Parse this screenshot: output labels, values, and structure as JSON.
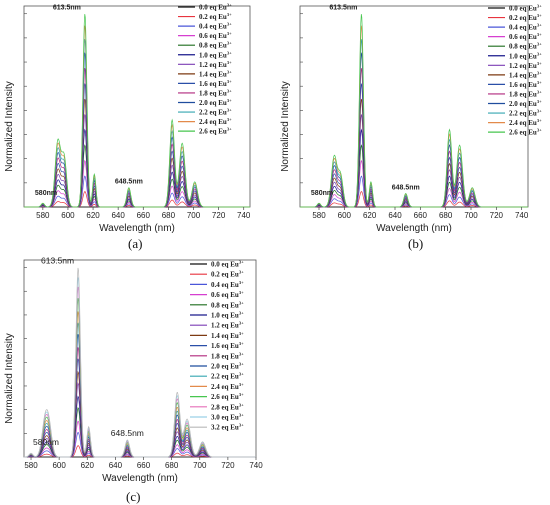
{
  "chart_data": [
    {
      "type": "line",
      "panel_label": "(a)",
      "xlabel": "Wavelength (nm)",
      "ylabel": "Normalized Intensity",
      "xlim": [
        565,
        745
      ],
      "x_ticks": [
        580,
        600,
        620,
        640,
        660,
        680,
        700,
        720,
        740
      ],
      "grid": false,
      "legend_position": "top-right",
      "peak_annotations": [
        {
          "text": "613.5nm",
          "x": 613.5
        },
        {
          "text": "648.5nm",
          "x": 648.5
        },
        {
          "text": "580nm",
          "x": 580
        }
      ],
      "peaks_nm": [
        580,
        592,
        597,
        613.5,
        621,
        648.5,
        683,
        691,
        701
      ],
      "peak_intensity_at_max_eu": [
        0.02,
        0.34,
        0.25,
        1.0,
        0.17,
        0.1,
        0.45,
        0.33,
        0.13
      ],
      "series": [
        {
          "name": "0.0 eq Eu",
          "scale": 0.0,
          "color": "#111111"
        },
        {
          "name": "0.2 eq Eu",
          "scale": 0.08,
          "color": "#e8343f"
        },
        {
          "name": "0.4 eq Eu",
          "scale": 0.16,
          "color": "#4a56d9"
        },
        {
          "name": "0.6 eq Eu",
          "scale": 0.24,
          "color": "#d63fd0"
        },
        {
          "name": "0.8 eq Eu",
          "scale": 0.32,
          "color": "#1f6e1f"
        },
        {
          "name": "1.0 eq Eu",
          "scale": 0.4,
          "color": "#1a1a8c"
        },
        {
          "name": "1.2 eq Eu",
          "scale": 0.48,
          "color": "#7d3fb5"
        },
        {
          "name": "1.4 eq Eu",
          "scale": 0.56,
          "color": "#7d3a12"
        },
        {
          "name": "1.6 eq Eu",
          "scale": 0.64,
          "color": "#2a4fa8"
        },
        {
          "name": "1.8 eq Eu",
          "scale": 0.72,
          "color": "#b0287d"
        },
        {
          "name": "2.0 eq Eu",
          "scale": 0.8,
          "color": "#1f4d9e"
        },
        {
          "name": "2.2 eq Eu",
          "scale": 0.87,
          "color": "#35a6b0"
        },
        {
          "name": "2.4 eq Eu",
          "scale": 0.94,
          "color": "#e38a4a"
        },
        {
          "name": "2.6 eq Eu",
          "scale": 1.0,
          "color": "#47c64f"
        }
      ]
    },
    {
      "type": "line",
      "panel_label": "(b)",
      "xlabel": "Wavelength (nm)",
      "ylabel": "Normalized Intensity",
      "xlim": [
        565,
        745
      ],
      "x_ticks": [
        580,
        600,
        620,
        640,
        660,
        680,
        700,
        720,
        740
      ],
      "grid": false,
      "legend_position": "top-right",
      "peak_annotations": [
        {
          "text": "613.5nm",
          "x": 613.5
        },
        {
          "text": "648.5nm",
          "x": 648.5
        },
        {
          "text": "580nm",
          "x": 580
        }
      ],
      "peaks_nm": [
        580,
        592,
        597,
        613.5,
        621,
        648.5,
        683,
        691,
        701
      ],
      "peak_intensity_at_max_eu": [
        0.02,
        0.26,
        0.16,
        1.0,
        0.13,
        0.07,
        0.4,
        0.32,
        0.1
      ],
      "series": [
        {
          "name": "0.0 eq Eu",
          "scale": 0.0,
          "color": "#111111"
        },
        {
          "name": "0.2 eq Eu",
          "scale": 0.08,
          "color": "#e8343f"
        },
        {
          "name": "0.4 eq Eu",
          "scale": 0.16,
          "color": "#4a56d9"
        },
        {
          "name": "0.6 eq Eu",
          "scale": 0.24,
          "color": "#d63fd0"
        },
        {
          "name": "0.8 eq Eu",
          "scale": 0.32,
          "color": "#1f6e1f"
        },
        {
          "name": "1.0 eq Eu",
          "scale": 0.4,
          "color": "#1a1a8c"
        },
        {
          "name": "1.2 eq Eu",
          "scale": 0.48,
          "color": "#7d3fb5"
        },
        {
          "name": "1.4 eq Eu",
          "scale": 0.56,
          "color": "#7d3a12"
        },
        {
          "name": "1.6 eq Eu",
          "scale": 0.64,
          "color": "#2a4fa8"
        },
        {
          "name": "1.8 eq Eu",
          "scale": 0.72,
          "color": "#b0287d"
        },
        {
          "name": "2.0 eq Eu",
          "scale": 0.8,
          "color": "#1f4d9e"
        },
        {
          "name": "2.2 eq Eu",
          "scale": 0.87,
          "color": "#35a6b0"
        },
        {
          "name": "2.4 eq Eu",
          "scale": 0.94,
          "color": "#e38a4a"
        },
        {
          "name": "2.6 eq Eu",
          "scale": 1.0,
          "color": "#47c64f"
        }
      ]
    },
    {
      "type": "line",
      "panel_label": "(c)",
      "xlabel": "Wavelength (nm)",
      "ylabel": "Normalized Intensity",
      "xlim": [
        575,
        740
      ],
      "x_ticks": [
        580,
        600,
        620,
        640,
        660,
        680,
        700,
        720,
        740
      ],
      "grid": false,
      "legend_position": "top-right",
      "peak_annotations": [
        {
          "text": "613.5nm",
          "x": 613.5
        },
        {
          "text": "648.5nm",
          "x": 648.5
        },
        {
          "text": "580nm",
          "x": 580
        }
      ],
      "peaks_nm": [
        580,
        590,
        593,
        613.5,
        621,
        648.5,
        684,
        691,
        702
      ],
      "peak_intensity_at_max_eu": [
        0.02,
        0.19,
        0.13,
        1.0,
        0.16,
        0.09,
        0.34,
        0.2,
        0.08
      ],
      "series": [
        {
          "name": "0.0 eq Eu",
          "scale": 0.0,
          "color": "#111111"
        },
        {
          "name": "0.2 eq Eu",
          "scale": 0.06,
          "color": "#e8343f"
        },
        {
          "name": "0.4 eq Eu",
          "scale": 0.13,
          "color": "#4a56d9"
        },
        {
          "name": "0.6 eq Eu",
          "scale": 0.19,
          "color": "#d63fd0"
        },
        {
          "name": "0.8 eq Eu",
          "scale": 0.26,
          "color": "#1f6e1f"
        },
        {
          "name": "1.0 eq Eu",
          "scale": 0.32,
          "color": "#1a1a8c"
        },
        {
          "name": "1.2 eq Eu",
          "scale": 0.39,
          "color": "#7d3fb5"
        },
        {
          "name": "1.4 eq Eu",
          "scale": 0.45,
          "color": "#7d3a12"
        },
        {
          "name": "1.6 eq Eu",
          "scale": 0.52,
          "color": "#2a4fa8"
        },
        {
          "name": "1.8 eq Eu",
          "scale": 0.58,
          "color": "#b0287d"
        },
        {
          "name": "2.0 eq Eu",
          "scale": 0.65,
          "color": "#1f4d9e"
        },
        {
          "name": "2.2 eq Eu",
          "scale": 0.71,
          "color": "#35a6b0"
        },
        {
          "name": "2.4 eq Eu",
          "scale": 0.77,
          "color": "#e38a4a"
        },
        {
          "name": "2.6 eq Eu",
          "scale": 0.84,
          "color": "#47c64f"
        },
        {
          "name": "2.8 eq Eu",
          "scale": 0.9,
          "color": "#e56fb8"
        },
        {
          "name": "3.0 eq Eu",
          "scale": 0.95,
          "color": "#9ad0e8"
        },
        {
          "name": "3.2 eq Eu",
          "scale": 1.0,
          "color": "#b8b8b8"
        }
      ]
    }
  ]
}
